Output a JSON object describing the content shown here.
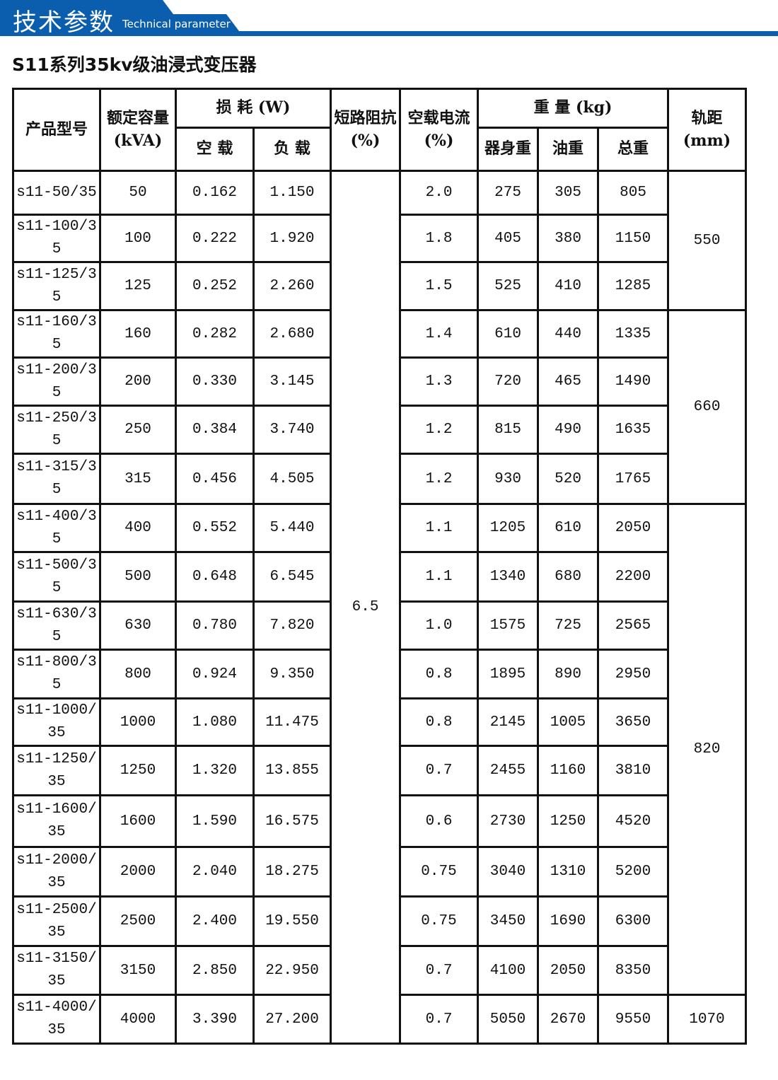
{
  "banner": {
    "title_cn": "技术参数",
    "title_en": "Technical parameter",
    "color": "#0a5ead"
  },
  "page_title": "S11系列35kv级油浸式变压器",
  "table": {
    "headers": {
      "model": "产品型号",
      "capacity": "额定容量",
      "capacity_unit": "(kVA)",
      "loss": "损 耗 (W)",
      "loss_noload": "空 载",
      "loss_load": "负 载",
      "impedance": "短路阻抗",
      "impedance_unit": "(%)",
      "noload_current": "空载电流",
      "noload_current_unit": "(%)",
      "weight": "重 量 (kg)",
      "weight_body": "器身重",
      "weight_oil": "油重",
      "weight_total": "总重",
      "gauge": "轨距",
      "gauge_unit": "(mm)"
    },
    "impedance_value": "6.5",
    "gauge_groups": [
      "550",
      "660",
      "820",
      "1070"
    ],
    "rows": [
      {
        "model": "s11-50/35",
        "capacity": "50",
        "noload": "0.162",
        "load": "1.150",
        "current": "2.0",
        "body": "275",
        "oil": "305",
        "total": "805"
      },
      {
        "model": "s11-100/35",
        "capacity": "100",
        "noload": "0.222",
        "load": "1.920",
        "current": "1.8",
        "body": "405",
        "oil": "380",
        "total": "1150"
      },
      {
        "model": "s11-125/35",
        "capacity": "125",
        "noload": "0.252",
        "load": "2.260",
        "current": "1.5",
        "body": "525",
        "oil": "410",
        "total": "1285"
      },
      {
        "model": "s11-160/35",
        "capacity": "160",
        "noload": "0.282",
        "load": "2.680",
        "current": "1.4",
        "body": "610",
        "oil": "440",
        "total": "1335"
      },
      {
        "model": "s11-200/35",
        "capacity": "200",
        "noload": "0.330",
        "load": "3.145",
        "current": "1.3",
        "body": "720",
        "oil": "465",
        "total": "1490"
      },
      {
        "model": "s11-250/35",
        "capacity": "250",
        "noload": "0.384",
        "load": "3.740",
        "current": "1.2",
        "body": "815",
        "oil": "490",
        "total": "1635"
      },
      {
        "model": "s11-315/35",
        "capacity": "315",
        "noload": "0.456",
        "load": "4.505",
        "current": "1.2",
        "body": "930",
        "oil": "520",
        "total": "1765"
      },
      {
        "model": "s11-400/35",
        "capacity": "400",
        "noload": "0.552",
        "load": "5.440",
        "current": "1.1",
        "body": "1205",
        "oil": "610",
        "total": "2050"
      },
      {
        "model": "s11-500/35",
        "capacity": "500",
        "noload": "0.648",
        "load": "6.545",
        "current": "1.1",
        "body": "1340",
        "oil": "680",
        "total": "2200"
      },
      {
        "model": "s11-630/35",
        "capacity": "630",
        "noload": "0.780",
        "load": "7.820",
        "current": "1.0",
        "body": "1575",
        "oil": "725",
        "total": "2565"
      },
      {
        "model": "s11-800/35",
        "capacity": "800",
        "noload": "0.924",
        "load": "9.350",
        "current": "0.8",
        "body": "1895",
        "oil": "890",
        "total": "2950"
      },
      {
        "model": "s11-1000/35",
        "capacity": "1000",
        "noload": "1.080",
        "load": "11.475",
        "current": "0.8",
        "body": "2145",
        "oil": "1005",
        "total": "3650"
      },
      {
        "model": "s11-1250/35",
        "capacity": "1250",
        "noload": "1.320",
        "load": "13.855",
        "current": "0.7",
        "body": "2455",
        "oil": "1160",
        "total": "3810"
      },
      {
        "model": "s11-1600/35",
        "capacity": "1600",
        "noload": "1.590",
        "load": "16.575",
        "current": "0.6",
        "body": "2730",
        "oil": "1250",
        "total": "4520"
      },
      {
        "model": "s11-2000/35",
        "capacity": "2000",
        "noload": "2.040",
        "load": "18.275",
        "current": "0.75",
        "body": "3040",
        "oil": "1310",
        "total": "5200"
      },
      {
        "model": "s11-2500/35",
        "capacity": "2500",
        "noload": "2.400",
        "load": "19.550",
        "current": "0.75",
        "body": "3450",
        "oil": "1690",
        "total": "6300"
      },
      {
        "model": "s11-3150/35",
        "capacity": "3150",
        "noload": "2.850",
        "load": "22.950",
        "current": "0.7",
        "body": "4100",
        "oil": "2050",
        "total": "8350"
      },
      {
        "model": "s11-4000/35",
        "capacity": "4000",
        "noload": "3.390",
        "load": "27.200",
        "current": "0.7",
        "body": "5050",
        "oil": "2670",
        "total": "9550"
      }
    ]
  }
}
